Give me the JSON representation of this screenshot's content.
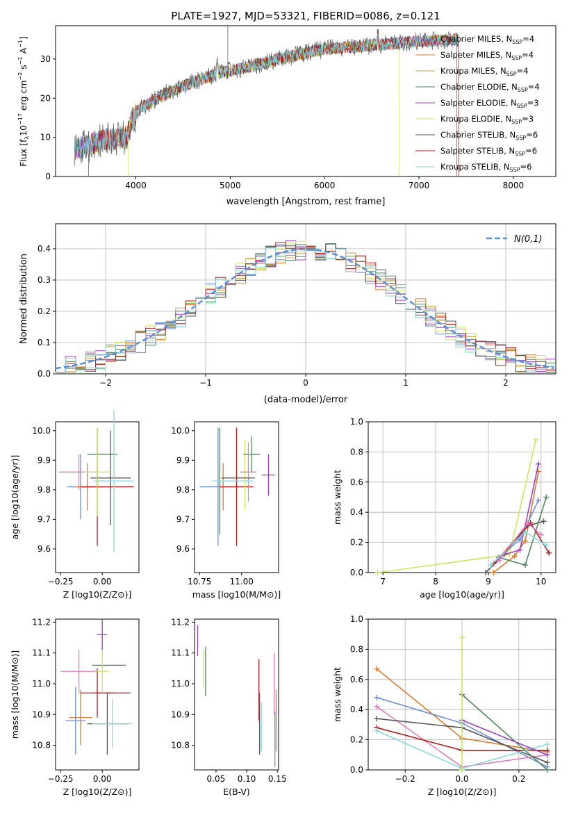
{
  "figure_title": "PLATE=1927, MJD=53321, FIBERID=0086, z=0.121",
  "colors": {
    "Chabrier MILES": "#6a8fd6",
    "Salpeter MILES": "#d97a2d",
    "Kroupa MILES": "#c8a04a",
    "Chabrier ELODIE": "#4f8a5a",
    "Salpeter ELODIE": "#9b3fc2",
    "Kroupa ELODIE": "#cde55c",
    "Chabrier STELIB": "#555555",
    "Salpeter STELIB": "#b31b1b",
    "Kroupa STELIB": "#86d9e2",
    "Pink": "#e07ab8",
    "Normal": "#5b8dd9"
  },
  "chart_data": [
    {
      "id": "spectrum",
      "type": "line",
      "title": "PLATE=1927, MJD=53321, FIBERID=0086, z=0.121",
      "xlabel": "wavelength [Angstrom, rest frame]",
      "ylabel": "Flux [f",
      "ylabel_parts": [
        "Flux [f",
        "λ",
        "10",
        "−17",
        " erg cm",
        "−2",
        " s",
        "−1",
        " A",
        "−1",
        "]"
      ],
      "xlim": [
        3150,
        8450
      ],
      "ylim": [
        0,
        38.5
      ],
      "xticks": [
        4000,
        5000,
        6000,
        7000,
        8000
      ],
      "yticks": [
        0,
        10,
        20,
        30
      ],
      "grid": false,
      "legend_position": "top-right",
      "legend": [
        {
          "name": "Chabrier MILES, N",
          "sub": "SSP",
          "tail": "=4"
        },
        {
          "name": "Salpeter MILES, N",
          "sub": "SSP",
          "tail": "=4"
        },
        {
          "name": "Kroupa MILES, N",
          "sub": "SSP",
          "tail": "=4"
        },
        {
          "name": "Chabrier ELODIE, N",
          "sub": "SSP",
          "tail": "=4"
        },
        {
          "name": "Salpeter ELODIE, N",
          "sub": "SSP",
          "tail": "=3"
        },
        {
          "name": "Kroupa ELODIE, N",
          "sub": "SSP",
          "tail": "=3"
        },
        {
          "name": "Chabrier STELIB, N",
          "sub": "SSP",
          "tail": "=6"
        },
        {
          "name": "Salpeter STELIB, N",
          "sub": "SSP",
          "tail": "=6"
        },
        {
          "name": "Kroupa STELIB, N",
          "sub": "SSP",
          "tail": "=6"
        }
      ],
      "continuum": {
        "x": [
          3350,
          3500,
          3700,
          3900,
          3950,
          4050,
          4300,
          4600,
          4900,
          5200,
          5600,
          6000,
          6500,
          7000,
          7400
        ],
        "y": [
          7,
          8,
          9.5,
          10,
          14,
          17.5,
          21,
          24,
          26.5,
          28,
          30.5,
          32.5,
          33.5,
          34.5,
          35
        ]
      },
      "cutoffs": [
        {
          "series": "Salpeter STELIB",
          "x_start": 3500,
          "x_end": 7400
        },
        {
          "series": "Kroupa ELODIE",
          "x_start": 3900,
          "x_end": 6800
        },
        {
          "series": "Salpeter MILES",
          "x_start": 3350,
          "x_end": 7400
        }
      ]
    },
    {
      "id": "residual-hist",
      "type": "histogram",
      "xlabel": "(data-model)/error",
      "ylabel": "Normed distribution",
      "xlim": [
        -2.5,
        2.5
      ],
      "ylim": [
        0,
        0.48
      ],
      "xticks": [
        -2,
        -1,
        0,
        1,
        2
      ],
      "yticks": [
        0.0,
        0.1,
        0.2,
        0.3,
        0.4
      ],
      "grid": true,
      "bin_width": 0.1,
      "legend": {
        "label": "N(0,1)",
        "position": "top-right"
      }
    },
    {
      "id": "age-vs-Z",
      "type": "errorbar",
      "xlabel": "Z [log10(Z/Z⊙)]",
      "ylabel": "age [log10(age/yr)]",
      "xlim": [
        -0.28,
        0.22
      ],
      "ylim": [
        9.52,
        10.03
      ],
      "xticks": [
        -0.25,
        0.0
      ],
      "yticks": [
        9.6,
        9.7,
        9.8,
        9.9,
        10.0
      ],
      "points": [
        {
          "c": "Chabrier MILES",
          "x": -0.13,
          "xerr": 0.08,
          "y": 9.81,
          "yerr": 0.11
        },
        {
          "c": "Salpeter MILES",
          "x": -0.09,
          "xerr": 0.07,
          "y": 9.81,
          "yerr": 0.08
        },
        {
          "c": "Pink",
          "x": -0.14,
          "xerr": 0.12,
          "y": 9.86,
          "yerr": 0.06
        },
        {
          "c": "Salpeter STELIB",
          "x": -0.03,
          "xerr": 0.09,
          "y": 9.81,
          "yerr": 0.2
        },
        {
          "c": "Salpeter STELIB",
          "x": 0.03,
          "xerr": 0.16,
          "y": 9.81,
          "yerr": 0.0
        },
        {
          "c": "Chabrier ELODIE",
          "x": 0.0,
          "xerr": 0.09,
          "y": 9.92,
          "yerr": 0.0
        },
        {
          "c": "Chabrier STELIB",
          "x": 0.05,
          "xerr": 0.12,
          "y": 9.84,
          "yerr": 0.16
        },
        {
          "c": "Kroupa STELIB",
          "x": 0.07,
          "xerr": 0.12,
          "y": 9.83,
          "yerr": 0.24
        },
        {
          "c": "Kroupa ELODIE",
          "x": -0.03,
          "xerr": 0.08,
          "y": 9.86,
          "yerr": 0.15
        },
        {
          "c": "Salpeter ELODIE",
          "x": 0.02,
          "xerr": 0.0,
          "y": 9.86,
          "yerr": 0.0
        }
      ]
    },
    {
      "id": "age-vs-mass",
      "type": "errorbar",
      "xlabel": "mass [log10(M/M⊙)]",
      "xlim": [
        10.72,
        11.22
      ],
      "ylim": [
        9.52,
        10.03
      ],
      "xticks": [
        10.75,
        11.0
      ],
      "yticks": [
        9.6,
        9.7,
        9.8,
        9.9,
        10.0
      ],
      "points": [
        {
          "c": "Chabrier MILES",
          "x": 10.86,
          "xerr": 0.11,
          "y": 9.81,
          "yerr": 0.2
        },
        {
          "c": "Chabrier ELODIE",
          "x": 10.87,
          "xerr": 0.0,
          "y": 9.83,
          "yerr": 0.18
        },
        {
          "c": "Salpeter MILES",
          "x": 10.89,
          "xerr": 0.0,
          "y": 9.81,
          "yerr": 0.08
        },
        {
          "c": "Salpeter STELIB",
          "x": 10.97,
          "xerr": 0.1,
          "y": 9.81,
          "yerr": 0.2
        },
        {
          "c": "Kroupa ELODIE",
          "x": 11.02,
          "xerr": 0.0,
          "y": 9.85,
          "yerr": 0.12
        },
        {
          "c": "Chabrier ELODIE",
          "x": 11.06,
          "xerr": 0.05,
          "y": 9.92,
          "yerr": 0.06
        },
        {
          "c": "Pink",
          "x": 11.04,
          "xerr": 0.05,
          "y": 9.86,
          "yerr": 0.1
        },
        {
          "c": "Chabrier STELIB",
          "x": 10.98,
          "xerr": 0.1,
          "y": 9.84,
          "yerr": 0.0
        },
        {
          "c": "Kroupa STELIB",
          "x": 10.95,
          "xerr": 0.12,
          "y": 9.83,
          "yerr": 0.0
        },
        {
          "c": "Salpeter ELODIE",
          "x": 11.16,
          "xerr": 0.04,
          "y": 9.85,
          "yerr": 0.07
        }
      ]
    },
    {
      "id": "massweight-vs-age",
      "type": "line",
      "xlabel": "age [log10(age/yr)]",
      "ylabel": "mass weight",
      "xlim": [
        6.72,
        10.28
      ],
      "ylim": [
        0,
        1.0
      ],
      "xticks": [
        7,
        8,
        9,
        10
      ],
      "yticks": [
        0.0,
        0.2,
        0.4,
        0.6,
        0.8,
        1.0
      ],
      "grid": true,
      "series": [
        {
          "c": "Kroupa ELODIE",
          "x": [
            6.9,
            9.4,
            9.9
          ],
          "y": [
            0.0,
            0.12,
            0.88
          ]
        },
        {
          "c": "Salpeter MILES",
          "x": [
            9.1,
            9.5,
            9.7,
            9.95
          ],
          "y": [
            0.0,
            0.11,
            0.21,
            0.67
          ]
        },
        {
          "c": "Salpeter ELODIE",
          "x": [
            9.3,
            9.6,
            9.95
          ],
          "y": [
            0.12,
            0.15,
            0.72
          ]
        },
        {
          "c": "Chabrier ELODIE",
          "x": [
            9.2,
            9.7,
            10.1
          ],
          "y": [
            0.1,
            0.05,
            0.5
          ]
        },
        {
          "c": "Chabrier MILES",
          "x": [
            9.2,
            9.6,
            9.95
          ],
          "y": [
            0.1,
            0.22,
            0.48
          ]
        },
        {
          "c": "Chabrier STELIB",
          "x": [
            8.95,
            9.3,
            9.75,
            10.05
          ],
          "y": [
            0.0,
            0.12,
            0.31,
            0.34
          ]
        },
        {
          "c": "Salpeter STELIB",
          "x": [
            9.1,
            9.8,
            10.15
          ],
          "y": [
            0.06,
            0.33,
            0.13
          ]
        },
        {
          "c": "Kroupa STELIB",
          "x": [
            9.05,
            9.7,
            10.1
          ],
          "y": [
            0.05,
            0.27,
            0.18
          ]
        },
        {
          "c": "Pink",
          "x": [
            9.2,
            9.75,
            10.0
          ],
          "y": [
            0.08,
            0.33,
            0.25
          ]
        }
      ]
    },
    {
      "id": "mass-vs-Z",
      "type": "errorbar",
      "xlabel": "Z [log10(Z/Z⊙)]",
      "ylabel": "mass [log10(M/M⊙)]",
      "xlim": [
        -0.28,
        0.22
      ],
      "ylim": [
        10.72,
        11.21
      ],
      "xticks": [
        -0.25,
        0.0
      ],
      "yticks": [
        10.8,
        10.9,
        11.0,
        11.1,
        11.2
      ],
      "points": [
        {
          "c": "Pink",
          "x": -0.14,
          "xerr": 0.11,
          "y": 11.04,
          "yerr": 0.07
        },
        {
          "c": "Salpeter MILES",
          "x": -0.13,
          "xerr": 0.07,
          "y": 10.89,
          "yerr": 0.09
        },
        {
          "c": "Chabrier MILES",
          "x": -0.16,
          "xerr": 0.06,
          "y": 10.88,
          "yerr": 0.11
        },
        {
          "c": "Salpeter STELIB",
          "x": -0.03,
          "xerr": 0.1,
          "y": 10.97,
          "yerr": 0.08
        },
        {
          "c": "Salpeter STELIB",
          "x": 0.06,
          "xerr": 0.11,
          "y": 10.97,
          "yerr": 0.0
        },
        {
          "c": "Chabrier ELODIE",
          "x": 0.04,
          "xerr": 0.1,
          "y": 11.06,
          "yerr": 0.0
        },
        {
          "c": "Chabrier STELIB",
          "x": 0.03,
          "xerr": 0.12,
          "y": 10.87,
          "yerr": 0.1
        },
        {
          "c": "Kroupa STELIB",
          "x": 0.06,
          "xerr": 0.12,
          "y": 10.87,
          "yerr": 0.08
        },
        {
          "c": "Kroupa ELODIE",
          "x": 0.0,
          "xerr": 0.04,
          "y": 11.04,
          "yerr": 0.07
        },
        {
          "c": "Salpeter ELODIE",
          "x": 0.0,
          "xerr": 0.03,
          "y": 11.16,
          "yerr": 0.05
        }
      ]
    },
    {
      "id": "mass-vs-ebv",
      "type": "errorbar",
      "xlabel": "E(B-V)",
      "xlim": [
        0.015,
        0.152
      ],
      "ylim": [
        10.72,
        11.21
      ],
      "xticks": [
        0.05,
        0.1,
        0.15
      ],
      "yticks": [
        10.8,
        10.9,
        11.0,
        11.1,
        11.2
      ],
      "points": [
        {
          "c": "Salpeter ELODIE",
          "x": 0.02,
          "xerr": 0.0,
          "y": 11.14,
          "yerr": 0.05
        },
        {
          "c": "Kroupa ELODIE",
          "x": 0.03,
          "xerr": 0.0,
          "y": 11.05,
          "yerr": 0.06
        },
        {
          "c": "Chabrier ELODIE",
          "x": 0.033,
          "xerr": 0.0,
          "y": 11.04,
          "yerr": 0.08
        },
        {
          "c": "Salpeter STELIB",
          "x": 0.12,
          "xerr": 0.0,
          "y": 10.98,
          "yerr": 0.1
        },
        {
          "c": "Chabrier STELIB",
          "x": 0.121,
          "xerr": 0.0,
          "y": 10.87,
          "yerr": 0.1
        },
        {
          "c": "Kroupa STELIB",
          "x": 0.124,
          "xerr": 0.0,
          "y": 10.86,
          "yerr": 0.08
        },
        {
          "c": "Pink",
          "x": 0.145,
          "xerr": 0.0,
          "y": 11.0,
          "yerr": 0.1
        },
        {
          "c": "Salpeter MILES",
          "x": 0.148,
          "xerr": 0.0,
          "y": 10.88,
          "yerr": 0.1
        },
        {
          "c": "Chabrier MILES",
          "x": 0.146,
          "xerr": 0.0,
          "y": 10.82,
          "yerr": 0.09
        }
      ]
    },
    {
      "id": "massweight-vs-Z",
      "type": "line",
      "xlabel": "Z [log10(Z/Z⊙)]",
      "ylabel": "mass weight",
      "xlim": [
        -0.33,
        0.33
      ],
      "ylim": [
        0,
        1.0
      ],
      "xticks": [
        -0.2,
        0.0,
        0.2
      ],
      "yticks": [
        0.0,
        0.2,
        0.4,
        0.6,
        0.8,
        1.0
      ],
      "grid": true,
      "series": [
        {
          "c": "Salpeter MILES",
          "x": [
            -0.3,
            0.0,
            0.3
          ],
          "y": [
            0.67,
            0.21,
            0.12
          ]
        },
        {
          "c": "Chabrier MILES",
          "x": [
            -0.3,
            0.0,
            0.3
          ],
          "y": [
            0.48,
            0.31,
            0.02
          ]
        },
        {
          "c": "Pink",
          "x": [
            -0.3,
            0.0,
            0.3
          ],
          "y": [
            0.42,
            0.02,
            0.1
          ]
        },
        {
          "c": "Chabrier STELIB",
          "x": [
            -0.3,
            0.0,
            0.3
          ],
          "y": [
            0.34,
            0.28,
            0.05
          ]
        },
        {
          "c": "Salpeter STELIB",
          "x": [
            -0.3,
            0.0,
            0.3
          ],
          "y": [
            0.28,
            0.13,
            0.13
          ]
        },
        {
          "c": "Kroupa STELIB",
          "x": [
            -0.3,
            0.0,
            0.3
          ],
          "y": [
            0.26,
            0.01,
            0.17
          ]
        },
        {
          "c": "Chabrier ELODIE",
          "x": [
            0.0,
            0.3
          ],
          "y": [
            0.5,
            0.0
          ]
        },
        {
          "c": "Salpeter ELODIE",
          "x": [
            0.0,
            0.3
          ],
          "y": [
            0.33,
            0.1
          ]
        },
        {
          "c": "Kroupa ELODIE",
          "x": [
            0.0,
            0.0
          ],
          "y": [
            0.0,
            0.88
          ]
        }
      ]
    }
  ]
}
